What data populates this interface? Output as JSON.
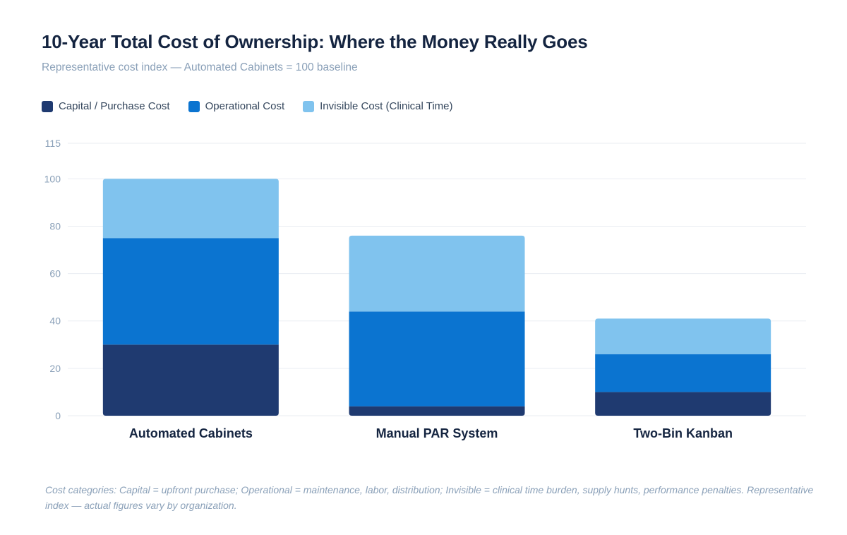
{
  "title": "10-Year Total Cost of Ownership: Where the Money Really Goes",
  "subtitle": "Representative cost index — Automated Cabinets = 100 baseline",
  "legend": [
    {
      "label": "Capital / Purchase Cost",
      "color": "#1f3a70"
    },
    {
      "label": "Operational Cost",
      "color": "#0b74d0"
    },
    {
      "label": "Invisible Cost (Clinical Time)",
      "color": "#80c3ee"
    }
  ],
  "footnote": "Cost categories: Capital = upfront purchase; Operational = maintenance, labor, distribution; Invisible = clinical time burden, supply hunts, performance penalties. Representative index — actual figures vary by organization.",
  "chart_data": {
    "type": "bar",
    "stacked": true,
    "categories": [
      "Automated Cabinets",
      "Manual PAR System",
      "Two-Bin Kanban"
    ],
    "series": [
      {
        "name": "Capital / Purchase Cost",
        "color": "#1f3a70",
        "values": [
          30,
          4,
          10
        ]
      },
      {
        "name": "Operational Cost",
        "color": "#0b74d0",
        "values": [
          45,
          40,
          16
        ]
      },
      {
        "name": "Invisible Cost (Clinical Time)",
        "color": "#80c3ee",
        "values": [
          25,
          32,
          15
        ]
      }
    ],
    "ylim": [
      0,
      115
    ],
    "yticks": [
      0,
      20,
      40,
      60,
      80,
      100,
      115
    ],
    "grid": true,
    "legend_position": "top-left"
  }
}
